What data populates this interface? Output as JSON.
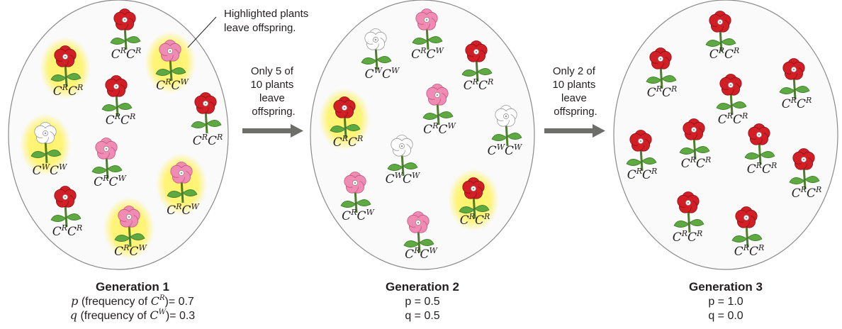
{
  "callout": {
    "line1": "Highlighted plants",
    "line2": "leave offspring."
  },
  "arrow1": {
    "lines": [
      "Only 5 of",
      "10 plants",
      "leave",
      "offspring."
    ]
  },
  "arrow2": {
    "lines": [
      "Only 2 of",
      "10 plants",
      "leave",
      "offspring."
    ]
  },
  "colors": {
    "red": "#d21f26",
    "pink": "#f08bb4",
    "white": "#ffffff",
    "highlight": "#fff36a",
    "stem": "#4f9d3a",
    "arrow": "#6d6e6a"
  },
  "generations": [
    {
      "title": "Generation 1",
      "p_text": "p",
      "p_label": " (frequency of ",
      "p_allele": "R",
      "p_value": ")= 0.7",
      "q_text": "q",
      "q_label": " (frequency of ",
      "q_allele": "W",
      "q_value": ")= 0.3",
      "plants": [
        {
          "genotype": [
            "R",
            "R"
          ],
          "color": "red",
          "highlight": false
        },
        {
          "genotype": [
            "R",
            "R"
          ],
          "color": "red",
          "highlight": true
        },
        {
          "genotype": [
            "R",
            "W"
          ],
          "color": "pink",
          "highlight": true
        },
        {
          "genotype": [
            "R",
            "R"
          ],
          "color": "red",
          "highlight": false
        },
        {
          "genotype": [
            "R",
            "R"
          ],
          "color": "red",
          "highlight": false
        },
        {
          "genotype": [
            "W",
            "W"
          ],
          "color": "white",
          "highlight": true
        },
        {
          "genotype": [
            "R",
            "W"
          ],
          "color": "pink",
          "highlight": false
        },
        {
          "genotype": [
            "R",
            "W"
          ],
          "color": "pink",
          "highlight": true
        },
        {
          "genotype": [
            "R",
            "R"
          ],
          "color": "red",
          "highlight": false
        },
        {
          "genotype": [
            "R",
            "W"
          ],
          "color": "pink",
          "highlight": true
        }
      ]
    },
    {
      "title": "Generation 2",
      "p_line": "p = 0.5",
      "q_line": "q = 0.5",
      "plants": [
        {
          "genotype": [
            "W",
            "W"
          ],
          "color": "white",
          "highlight": false
        },
        {
          "genotype": [
            "R",
            "W"
          ],
          "color": "pink",
          "highlight": false
        },
        {
          "genotype": [
            "R",
            "R"
          ],
          "color": "red",
          "highlight": false
        },
        {
          "genotype": [
            "R",
            "W"
          ],
          "color": "pink",
          "highlight": false
        },
        {
          "genotype": [
            "R",
            "R"
          ],
          "color": "red",
          "highlight": true
        },
        {
          "genotype": [
            "W",
            "W"
          ],
          "color": "white",
          "highlight": false
        },
        {
          "genotype": [
            "W",
            "W"
          ],
          "color": "white",
          "highlight": false
        },
        {
          "genotype": [
            "R",
            "W"
          ],
          "color": "pink",
          "highlight": false
        },
        {
          "genotype": [
            "R",
            "R"
          ],
          "color": "red",
          "highlight": true
        },
        {
          "genotype": [
            "R",
            "W"
          ],
          "color": "pink",
          "highlight": false
        }
      ]
    },
    {
      "title": "Generation 3",
      "p_line": "p = 1.0",
      "q_line": "q = 0.0",
      "plants": [
        {
          "genotype": [
            "R",
            "R"
          ],
          "color": "red",
          "highlight": false
        },
        {
          "genotype": [
            "R",
            "R"
          ],
          "color": "red",
          "highlight": false
        },
        {
          "genotype": [
            "R",
            "R"
          ],
          "color": "red",
          "highlight": false
        },
        {
          "genotype": [
            "R",
            "R"
          ],
          "color": "red",
          "highlight": false
        },
        {
          "genotype": [
            "R",
            "R"
          ],
          "color": "red",
          "highlight": false
        },
        {
          "genotype": [
            "R",
            "R"
          ],
          "color": "red",
          "highlight": false
        },
        {
          "genotype": [
            "R",
            "R"
          ],
          "color": "red",
          "highlight": false
        },
        {
          "genotype": [
            "R",
            "R"
          ],
          "color": "red",
          "highlight": false
        },
        {
          "genotype": [
            "R",
            "R"
          ],
          "color": "red",
          "highlight": false
        },
        {
          "genotype": [
            "R",
            "R"
          ],
          "color": "red",
          "highlight": false
        }
      ]
    }
  ]
}
